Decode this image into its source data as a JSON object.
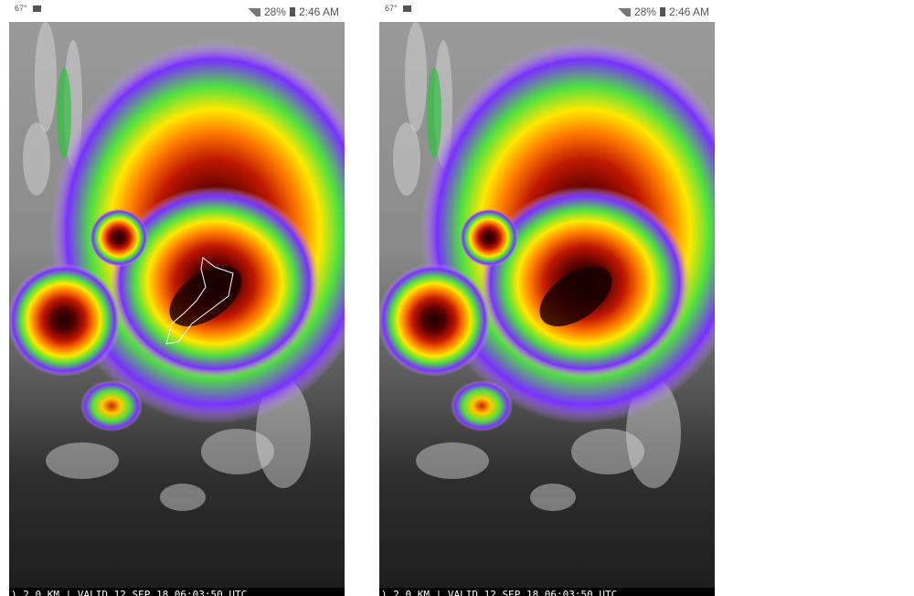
{
  "panels": [
    {
      "status": {
        "temperature": "67°",
        "battery": "28%",
        "time": "2:46 AM"
      },
      "caption": ") 2.0 KM | VALID 12 SEP 18 06:03:50 UTC"
    },
    {
      "status": {
        "temperature": "67°",
        "battery": "28%",
        "time": "2:46 AM"
      },
      "caption": ") 2.0 KM | VALID 12 SEP 18 06:03:50 UTC"
    }
  ]
}
